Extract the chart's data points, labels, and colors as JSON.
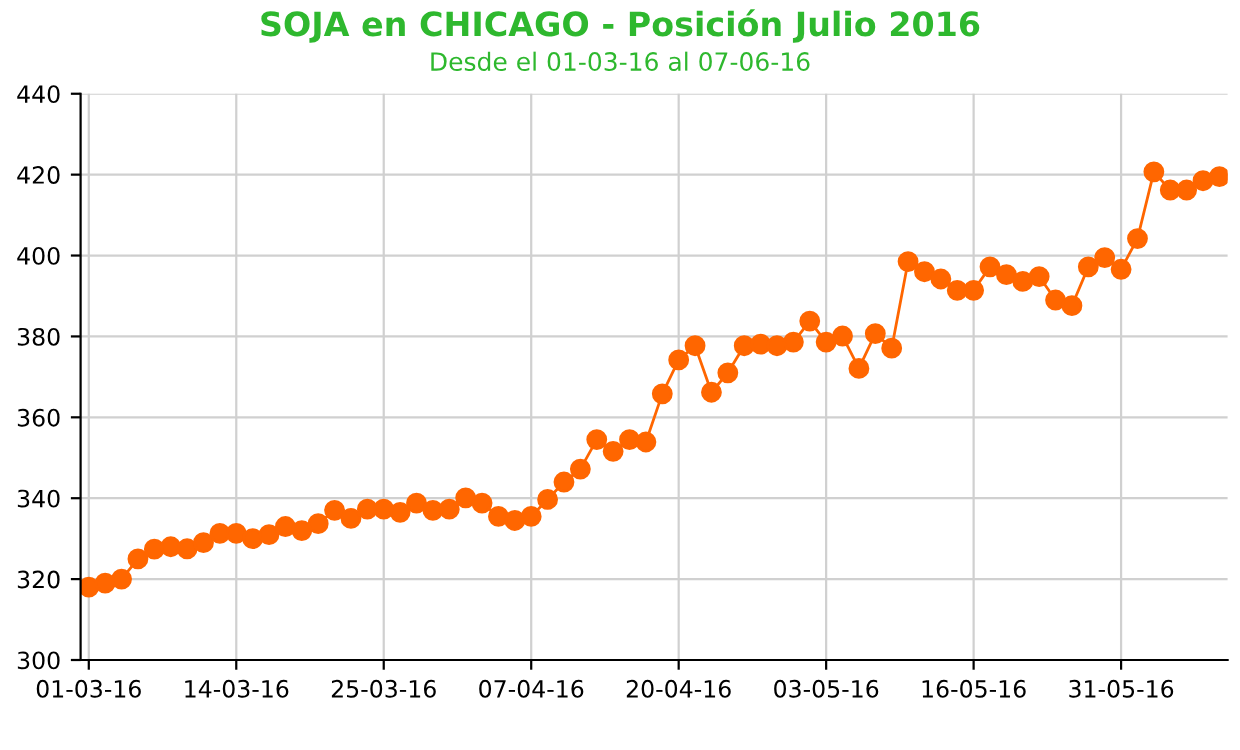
{
  "chart_data": {
    "type": "line",
    "title": "SOJA en CHICAGO - Posición Julio 2016",
    "subtitle": "Desde el 01-03-16 al 07-06-16",
    "categories": [
      "01-03-16",
      null,
      null,
      null,
      null,
      null,
      null,
      null,
      null,
      "14-03-16",
      null,
      null,
      null,
      null,
      null,
      null,
      null,
      null,
      "25-03-16",
      null,
      null,
      null,
      null,
      null,
      null,
      null,
      null,
      "07-04-16",
      null,
      null,
      null,
      null,
      null,
      null,
      null,
      null,
      "20-04-16",
      null,
      null,
      null,
      null,
      null,
      null,
      null,
      null,
      "03-05-16",
      null,
      null,
      null,
      null,
      null,
      null,
      null,
      null,
      "16-05-16",
      null,
      null,
      null,
      null,
      null,
      null,
      null,
      null,
      "31-05-16",
      null,
      null,
      null,
      null,
      null,
      null
    ],
    "series": [
      {
        "color": "#ff6600",
        "values": [
          318,
          319,
          320,
          325,
          327.4,
          328,
          327.5,
          329,
          331.3,
          331.3,
          330,
          331,
          333,
          332,
          333.7,
          337,
          335,
          337.3,
          337.3,
          336.5,
          338.8,
          337,
          337.3,
          340.1,
          338.8,
          335.5,
          334.5,
          335.5,
          339.7,
          344,
          347.2,
          354.5,
          351.6,
          354.5,
          353.9,
          365.8,
          374.2,
          377.7,
          366.2,
          371,
          377.7,
          378.1,
          377.7,
          378.6,
          383.8,
          378.6,
          380.1,
          372.1,
          380.7,
          377.1,
          398.5,
          396,
          394.2,
          391.4,
          391.4,
          397.2,
          395.3,
          393.6,
          394.8,
          389,
          387.6,
          397.2,
          399.5,
          396.6,
          404.2,
          420.7,
          416.2,
          416.2,
          418.5,
          419.5
        ]
      }
    ],
    "ylim": [
      300,
      440
    ],
    "yticks": [
      300,
      320,
      340,
      360,
      380,
      400,
      420,
      440
    ],
    "grid": true,
    "marker": "circle",
    "line_style": "solid",
    "legend": false
  }
}
